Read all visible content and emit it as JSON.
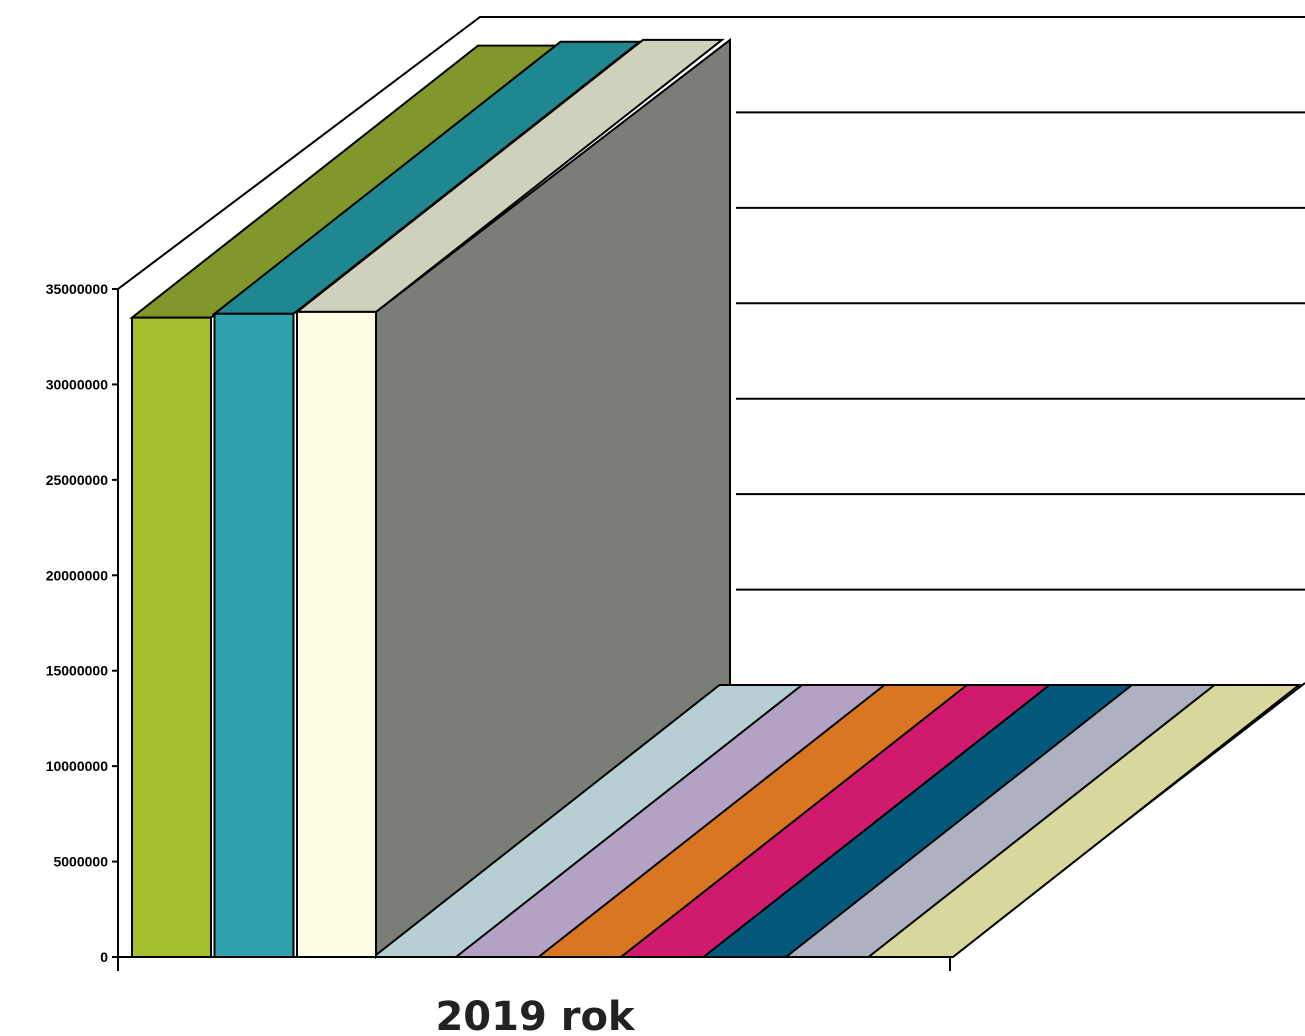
{
  "chart_data": {
    "type": "bar",
    "style": "3d-clustered",
    "categories": [
      "2019 rok"
    ],
    "series": [
      {
        "values": [
          33500000
        ],
        "color": "#a4bf2e",
        "side": "#80982a",
        "top": "#7f972b"
      },
      {
        "values": [
          33700000
        ],
        "color": "#2ea3ae",
        "side": "#228892",
        "top": "#1f8790"
      },
      {
        "values": [
          33800000
        ],
        "color": "#fefee4",
        "side": "#b5b6ae",
        "top": "#cfd1bd"
      },
      {
        "values": [
          0
        ],
        "color": "#b7cfd3",
        "side": "#90a8ad",
        "top": "#b7cfd3"
      },
      {
        "values": [
          0
        ],
        "color": "#b3a2c3",
        "side": "#8e7fa0",
        "top": "#b3a2c3"
      },
      {
        "values": [
          0
        ],
        "color": "#d87621",
        "side": "#a85a17",
        "top": "#d87621"
      },
      {
        "values": [
          0
        ],
        "color": "#cf1a6e",
        "side": "#a01354",
        "top": "#cf1a6e"
      },
      {
        "values": [
          0
        ],
        "color": "#04587a",
        "side": "#03425c",
        "top": "#04587a"
      },
      {
        "values": [
          0
        ],
        "color": "#aeb1c2",
        "side": "#8a8d9c",
        "top": "#aeb1c2"
      },
      {
        "values": [
          0
        ],
        "color": "#d8d89c",
        "side": "#adad7c",
        "top": "#d8d89c"
      }
    ],
    "ylim": [
      0,
      35000000
    ],
    "yticks": [
      0,
      5000000,
      10000000,
      15000000,
      20000000,
      25000000,
      30000000,
      35000000
    ],
    "ytick_labels": [
      "0",
      "5000000",
      "10000000",
      "15000000",
      "20000000",
      "25000000",
      "30000000",
      "35000000"
    ],
    "grid": true,
    "back_wall_color": "#7b7d78",
    "xlabel": "",
    "ylabel": ""
  }
}
